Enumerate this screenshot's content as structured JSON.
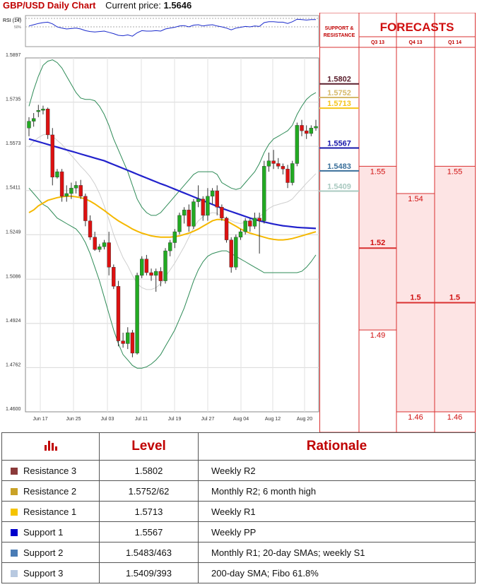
{
  "header": {
    "title": "GBP/USD Daily Chart",
    "current_price_label": "Current price:",
    "current_price": "1.5646"
  },
  "chart_data": {
    "type": "candlestick",
    "title": "GBP/USD Daily Chart",
    "y_ticks": [
      "1.5897",
      "1.5735",
      "1.5573",
      "1.5411",
      "1.5249",
      "1.5086",
      "1.4924",
      "1.4762",
      "1.4600"
    ],
    "ylim": [
      1.46,
      1.5897
    ],
    "x_ticks": [
      "Jun 17",
      "Jun 25",
      "Jul 03",
      "Jul 11",
      "Jul 19",
      "Jul 27",
      "Aug 04",
      "Aug 12",
      "Aug 20"
    ],
    "rsi": {
      "label": "RSI (14)",
      "levels": [
        "70%",
        "50%"
      ]
    },
    "candles": [
      {
        "o": 1.564,
        "h": 1.568,
        "l": 1.561,
        "c": 1.5665
      },
      {
        "o": 1.5665,
        "h": 1.5695,
        "l": 1.5645,
        "c": 1.5675
      },
      {
        "o": 1.57,
        "h": 1.5725,
        "l": 1.568,
        "c": 1.5705
      },
      {
        "o": 1.5705,
        "h": 1.5722,
        "l": 1.569,
        "c": 1.571
      },
      {
        "o": 1.571,
        "h": 1.5715,
        "l": 1.56,
        "c": 1.5615
      },
      {
        "o": 1.5615,
        "h": 1.564,
        "l": 1.543,
        "c": 1.546
      },
      {
        "o": 1.546,
        "h": 1.549,
        "l": 1.5455,
        "c": 1.548
      },
      {
        "o": 1.548,
        "h": 1.549,
        "l": 1.537,
        "c": 1.539
      },
      {
        "o": 1.539,
        "h": 1.543,
        "l": 1.537,
        "c": 1.54
      },
      {
        "o": 1.54,
        "h": 1.544,
        "l": 1.538,
        "c": 1.542
      },
      {
        "o": 1.542,
        "h": 1.5445,
        "l": 1.54,
        "c": 1.543
      },
      {
        "o": 1.543,
        "h": 1.545,
        "l": 1.538,
        "c": 1.539
      },
      {
        "o": 1.539,
        "h": 1.54,
        "l": 1.528,
        "c": 1.53
      },
      {
        "o": 1.53,
        "h": 1.532,
        "l": 1.523,
        "c": 1.524
      },
      {
        "o": 1.524,
        "h": 1.526,
        "l": 1.519,
        "c": 1.5195
      },
      {
        "o": 1.5195,
        "h": 1.5215,
        "l": 1.5185,
        "c": 1.5205
      },
      {
        "o": 1.5205,
        "h": 1.523,
        "l": 1.5195,
        "c": 1.522
      },
      {
        "o": 1.522,
        "h": 1.526,
        "l": 1.51,
        "c": 1.513
      },
      {
        "o": 1.513,
        "h": 1.514,
        "l": 1.505,
        "c": 1.506
      },
      {
        "o": 1.506,
        "h": 1.508,
        "l": 1.484,
        "c": 1.486
      },
      {
        "o": 1.486,
        "h": 1.489,
        "l": 1.4835,
        "c": 1.485
      },
      {
        "o": 1.485,
        "h": 1.491,
        "l": 1.483,
        "c": 1.489
      },
      {
        "o": 1.489,
        "h": 1.49,
        "l": 1.48,
        "c": 1.4815
      },
      {
        "o": 1.4815,
        "h": 1.511,
        "l": 1.481,
        "c": 1.51
      },
      {
        "o": 1.51,
        "h": 1.517,
        "l": 1.509,
        "c": 1.516
      },
      {
        "o": 1.516,
        "h": 1.5175,
        "l": 1.51,
        "c": 1.511
      },
      {
        "o": 1.511,
        "h": 1.5125,
        "l": 1.508,
        "c": 1.51
      },
      {
        "o": 1.51,
        "h": 1.5125,
        "l": 1.504,
        "c": 1.5115
      },
      {
        "o": 1.5115,
        "h": 1.513,
        "l": 1.506,
        "c": 1.508
      },
      {
        "o": 1.508,
        "h": 1.52,
        "l": 1.507,
        "c": 1.519
      },
      {
        "o": 1.519,
        "h": 1.523,
        "l": 1.517,
        "c": 1.522
      },
      {
        "o": 1.522,
        "h": 1.527,
        "l": 1.52,
        "c": 1.526
      },
      {
        "o": 1.526,
        "h": 1.533,
        "l": 1.525,
        "c": 1.532
      },
      {
        "o": 1.532,
        "h": 1.535,
        "l": 1.529,
        "c": 1.534
      },
      {
        "o": 1.534,
        "h": 1.536,
        "l": 1.526,
        "c": 1.528
      },
      {
        "o": 1.528,
        "h": 1.538,
        "l": 1.527,
        "c": 1.537
      },
      {
        "o": 1.537,
        "h": 1.543,
        "l": 1.535,
        "c": 1.538
      },
      {
        "o": 1.538,
        "h": 1.539,
        "l": 1.53,
        "c": 1.532
      },
      {
        "o": 1.532,
        "h": 1.542,
        "l": 1.53,
        "c": 1.539
      },
      {
        "o": 1.539,
        "h": 1.542,
        "l": 1.536,
        "c": 1.541
      },
      {
        "o": 1.541,
        "h": 1.543,
        "l": 1.532,
        "c": 1.535
      },
      {
        "o": 1.535,
        "h": 1.536,
        "l": 1.53,
        "c": 1.531
      },
      {
        "o": 1.531,
        "h": 1.5315,
        "l": 1.522,
        "c": 1.523
      },
      {
        "o": 1.523,
        "h": 1.524,
        "l": 1.511,
        "c": 1.513
      },
      {
        "o": 1.513,
        "h": 1.525,
        "l": 1.512,
        "c": 1.524
      },
      {
        "o": 1.524,
        "h": 1.527,
        "l": 1.523,
        "c": 1.526
      },
      {
        "o": 1.526,
        "h": 1.531,
        "l": 1.525,
        "c": 1.53
      },
      {
        "o": 1.53,
        "h": 1.531,
        "l": 1.526,
        "c": 1.528
      },
      {
        "o": 1.528,
        "h": 1.533,
        "l": 1.527,
        "c": 1.531
      },
      {
        "o": 1.531,
        "h": 1.533,
        "l": 1.518,
        "c": 1.53
      },
      {
        "o": 1.53,
        "h": 1.552,
        "l": 1.529,
        "c": 1.55
      },
      {
        "o": 1.55,
        "h": 1.555,
        "l": 1.548,
        "c": 1.552
      },
      {
        "o": 1.552,
        "h": 1.556,
        "l": 1.549,
        "c": 1.551
      },
      {
        "o": 1.551,
        "h": 1.553,
        "l": 1.549,
        "c": 1.55
      },
      {
        "o": 1.55,
        "h": 1.551,
        "l": 1.547,
        "c": 1.549
      },
      {
        "o": 1.549,
        "h": 1.5505,
        "l": 1.542,
        "c": 1.544
      },
      {
        "o": 1.544,
        "h": 1.552,
        "l": 1.543,
        "c": 1.551
      },
      {
        "o": 1.551,
        "h": 1.566,
        "l": 1.55,
        "c": 1.565
      },
      {
        "o": 1.565,
        "h": 1.567,
        "l": 1.561,
        "c": 1.563
      },
      {
        "o": 1.563,
        "h": 1.565,
        "l": 1.56,
        "c": 1.562
      },
      {
        "o": 1.562,
        "h": 1.565,
        "l": 1.561,
        "c": 1.564
      },
      {
        "o": 1.564,
        "h": 1.567,
        "l": 1.563,
        "c": 1.5646
      }
    ],
    "sma_blue": [
      1.56,
      1.5595,
      1.559,
      1.5585,
      1.558,
      1.5575,
      1.557,
      1.5565,
      1.556,
      1.5555,
      1.555,
      1.5545,
      1.554,
      1.5535,
      1.553,
      1.5525,
      1.552,
      1.5513,
      1.5506,
      1.5499,
      1.5492,
      1.5485,
      1.5478,
      1.5471,
      1.5464,
      1.5457,
      1.545,
      1.5443,
      1.5436,
      1.543,
      1.5423,
      1.5416,
      1.5409,
      1.5402,
      1.5395,
      1.5388,
      1.5381,
      1.5374,
      1.5367,
      1.536,
      1.5353,
      1.5346,
      1.534,
      1.5334,
      1.5328,
      1.5322,
      1.5316,
      1.531,
      1.5305,
      1.53,
      1.5296,
      1.5292,
      1.5288,
      1.5285,
      1.5282,
      1.528,
      1.5278,
      1.5276,
      1.5275,
      1.5274,
      1.5273,
      1.5272
    ],
    "sma_yellow": [
      1.533,
      1.534,
      1.5355,
      1.5365,
      1.5375,
      1.538,
      1.5385,
      1.5388,
      1.539,
      1.539,
      1.5388,
      1.5385,
      1.538,
      1.5372,
      1.5362,
      1.535,
      1.5338,
      1.5325,
      1.5312,
      1.53,
      1.529,
      1.528,
      1.527,
      1.5262,
      1.5255,
      1.525,
      1.5245,
      1.5242,
      1.524,
      1.524,
      1.524,
      1.5242,
      1.5245,
      1.525,
      1.5255,
      1.5262,
      1.527,
      1.528,
      1.529,
      1.53,
      1.5305,
      1.5305,
      1.53,
      1.529,
      1.528,
      1.527,
      1.5262,
      1.5255,
      1.525,
      1.5245,
      1.524,
      1.5235,
      1.5232,
      1.523,
      1.523,
      1.5232,
      1.5235,
      1.524,
      1.5245,
      1.525,
      1.5255,
      1.526
    ],
    "bb_upper": [
      1.572,
      1.578,
      1.583,
      1.587,
      1.5885,
      1.589,
      1.588,
      1.586,
      1.583,
      1.58,
      1.577,
      1.575,
      1.5745,
      1.5745,
      1.574,
      1.572,
      1.569,
      1.565,
      1.56,
      1.556,
      1.552,
      1.548,
      1.543,
      1.538,
      1.535,
      1.533,
      1.532,
      1.532,
      1.533,
      1.535,
      1.537,
      1.539,
      1.541,
      1.543,
      1.545,
      1.547,
      1.548,
      1.548,
      1.548,
      1.548,
      1.547,
      1.544,
      1.543,
      1.542,
      1.5415,
      1.542,
      1.544,
      1.546,
      1.548,
      1.551,
      1.555,
      1.558,
      1.56,
      1.561,
      1.562,
      1.563,
      1.565,
      1.569,
      1.572,
      1.5745,
      1.576,
      1.577
    ],
    "bb_lower": [
      1.542,
      1.54,
      1.538,
      1.536,
      1.535,
      1.533,
      1.531,
      1.53,
      1.529,
      1.528,
      1.527,
      1.525,
      1.522,
      1.518,
      1.513,
      1.508,
      1.502,
      1.496,
      1.49,
      1.485,
      1.481,
      1.479,
      1.477,
      1.476,
      1.476,
      1.4765,
      1.4775,
      1.479,
      1.481,
      1.484,
      1.487,
      1.49,
      1.494,
      1.498,
      1.503,
      1.508,
      1.512,
      1.515,
      1.517,
      1.518,
      1.5185,
      1.519,
      1.519,
      1.518,
      1.517,
      1.516,
      1.515,
      1.514,
      1.513,
      1.512,
      1.511,
      1.511,
      1.511,
      1.511,
      1.511,
      1.511,
      1.511,
      1.511,
      1.5115,
      1.513,
      1.515,
      1.5175
    ],
    "bb_mid": [
      1.557,
      1.559,
      1.5605,
      1.5615,
      1.5618,
      1.561,
      1.5595,
      1.558,
      1.556,
      1.554,
      1.552,
      1.55,
      1.5482,
      1.5462,
      1.5435,
      1.54,
      1.5355,
      1.5305,
      1.525,
      1.5205,
      1.5165,
      1.5135,
      1.51,
      1.507,
      1.5055,
      1.5048,
      1.5048,
      1.5055,
      1.507,
      1.5095,
      1.512,
      1.5145,
      1.5175,
      1.5205,
      1.524,
      1.5275,
      1.53,
      1.5315,
      1.5325,
      1.533,
      1.5328,
      1.5315,
      1.531,
      1.53,
      1.5293,
      1.529,
      1.5295,
      1.53,
      1.5305,
      1.5315,
      1.533,
      1.5345,
      1.5355,
      1.536,
      1.5365,
      1.537,
      1.538,
      1.54,
      1.5418,
      1.5438,
      1.5455,
      1.5473
    ],
    "rsi_values": [
      52,
      55,
      58,
      60,
      61,
      57,
      50,
      47,
      45,
      46,
      47,
      45,
      41,
      39,
      38,
      39,
      40,
      37,
      34,
      30,
      29,
      31,
      28,
      36,
      41,
      40,
      40,
      41,
      40,
      45,
      47,
      49,
      52,
      53,
      50,
      54,
      55,
      52,
      54,
      55,
      52,
      50,
      47,
      43,
      47,
      49,
      51,
      50,
      52,
      51,
      60,
      62,
      62,
      61,
      61,
      58,
      62,
      68,
      67,
      66,
      67,
      67
    ]
  },
  "sr_panel": {
    "header": "SUPPORT & RESISTANCE",
    "levels": [
      {
        "label": "1.5802",
        "value": 1.5802,
        "color": "#5a1e2c"
      },
      {
        "label": "1.5752",
        "value": 1.5752,
        "color": "#d6b96a"
      },
      {
        "label": "1.5713",
        "value": 1.5713,
        "color": "#f5c41a"
      },
      {
        "label": "1.5567",
        "value": 1.5567,
        "color": "#1515aa"
      },
      {
        "label": "1.5483",
        "value": 1.5483,
        "color": "#3a6f9a"
      },
      {
        "label": "1.5409",
        "value": 1.5409,
        "color": "#a9c9c0"
      }
    ]
  },
  "forecasts": {
    "title": "FORECASTS",
    "columns": [
      {
        "label": "Q3 13",
        "levels": [
          {
            "label": "1.55",
            "value": 1.55,
            "bold": false
          },
          {
            "label": "1.52",
            "value": 1.52,
            "bold": true
          },
          {
            "label": "1.49",
            "value": 1.49,
            "bold": false
          }
        ]
      },
      {
        "label": "Q4 13",
        "levels": [
          {
            "label": "1.54",
            "value": 1.54,
            "bold": false
          },
          {
            "label": "1.5",
            "value": 1.5,
            "bold": true
          },
          {
            "label": "1.46",
            "value": 1.46,
            "bold": false
          }
        ]
      },
      {
        "label": "Q1 14",
        "levels": [
          {
            "label": "1.55",
            "value": 1.55,
            "bold": false
          },
          {
            "label": "1.5",
            "value": 1.5,
            "bold": true
          },
          {
            "label": "1.46",
            "value": 1.46,
            "bold": false
          }
        ]
      }
    ]
  },
  "table": {
    "headers": [
      "",
      "Level",
      "Rationale"
    ],
    "rows": [
      {
        "name": "Resistance 3",
        "level": "1.5802",
        "rationale": "Weekly R2",
        "color": "#8b3a3a"
      },
      {
        "name": "Resistance 2",
        "level": "1.5752/62",
        "rationale": "Monthly R2; 6 month high",
        "color": "#c9a227"
      },
      {
        "name": "Resistance 1",
        "level": "1.5713",
        "rationale": "Weekly R1",
        "color": "#f5c400"
      },
      {
        "name": "Support 1",
        "level": "1.5567",
        "rationale": "Weekly PP",
        "color": "#0000cc"
      },
      {
        "name": "Support 2",
        "level": "1.5483/463",
        "rationale": "Monthly R1; 20-day SMAs; weekly S1",
        "color": "#4a7cb5"
      },
      {
        "name": "Support 3",
        "level": "1.5409/393",
        "rationale": "200-day SMA; Fibo 61.8%",
        "color": "#b8c9e0"
      }
    ]
  }
}
